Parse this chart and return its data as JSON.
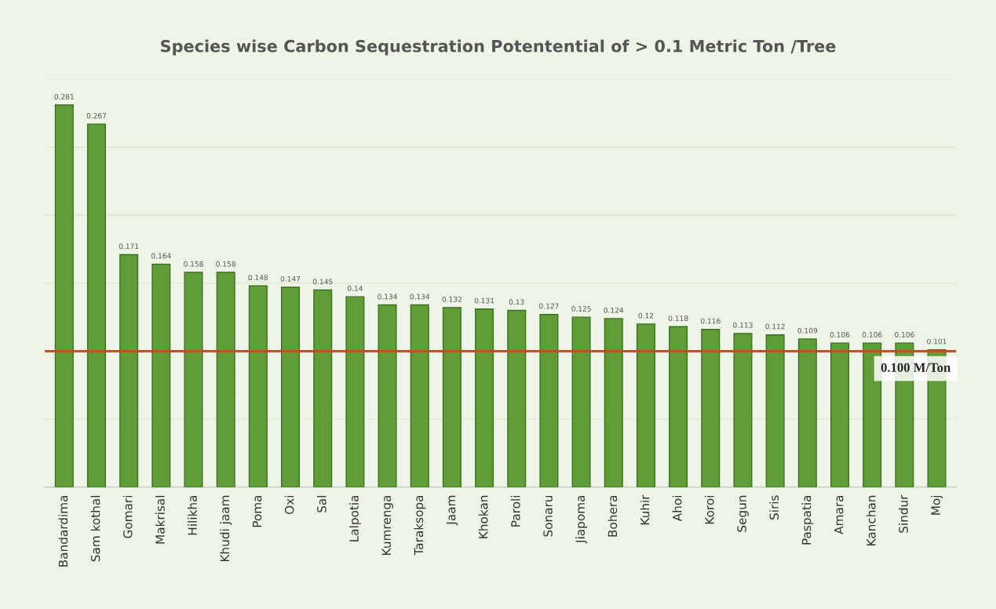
{
  "chart_data": {
    "type": "bar",
    "title": "Species wise Carbon Sequestration Potentential of > 0.1 Metric Ton /Tree",
    "categories": [
      "Bandardima",
      "Sam kothal",
      "Gomari",
      "Makrisal",
      "Hilikha",
      "Khudi jaam",
      "Poma",
      "Oxi",
      "Sal",
      "Lalpotia",
      "Kumrenga",
      "Taraksopa",
      "Jaam",
      "Khokan",
      "Paroli",
      "Sonaru",
      "Jiapoma",
      "Bohera",
      "Kuhir",
      "Ahoi",
      "Koroi",
      "Segun",
      "Siris",
      "Paspatia",
      "Amara",
      "Kanchan",
      "Sindur",
      "Moj"
    ],
    "values": [
      0.281,
      0.267,
      0.171,
      0.164,
      0.158,
      0.158,
      0.148,
      0.147,
      0.145,
      0.14,
      0.134,
      0.134,
      0.132,
      0.131,
      0.13,
      0.127,
      0.125,
      0.124,
      0.12,
      0.118,
      0.116,
      0.113,
      0.112,
      0.109,
      0.106,
      0.106,
      0.106,
      0.101
    ],
    "color": "#5f9e36",
    "data_labels": true,
    "ylim": [
      0,
      0.3
    ],
    "yticks": [
      {
        "value": 0,
        "label": null
      },
      {
        "value": 0.05,
        "label": null
      },
      {
        "value": 0.1,
        "label": null
      },
      {
        "value": 0.15,
        "label": null
      },
      {
        "value": 0.2,
        "label": null
      },
      {
        "value": 0.25,
        "label": null
      },
      {
        "value": 0.3,
        "label": null
      }
    ],
    "tick_labels": "x",
    "grid": "y",
    "ref_lines": [
      {
        "axis": "y",
        "value": 0.1,
        "label": "0.100 M/Ton",
        "color": "#c0501f"
      }
    ]
  }
}
